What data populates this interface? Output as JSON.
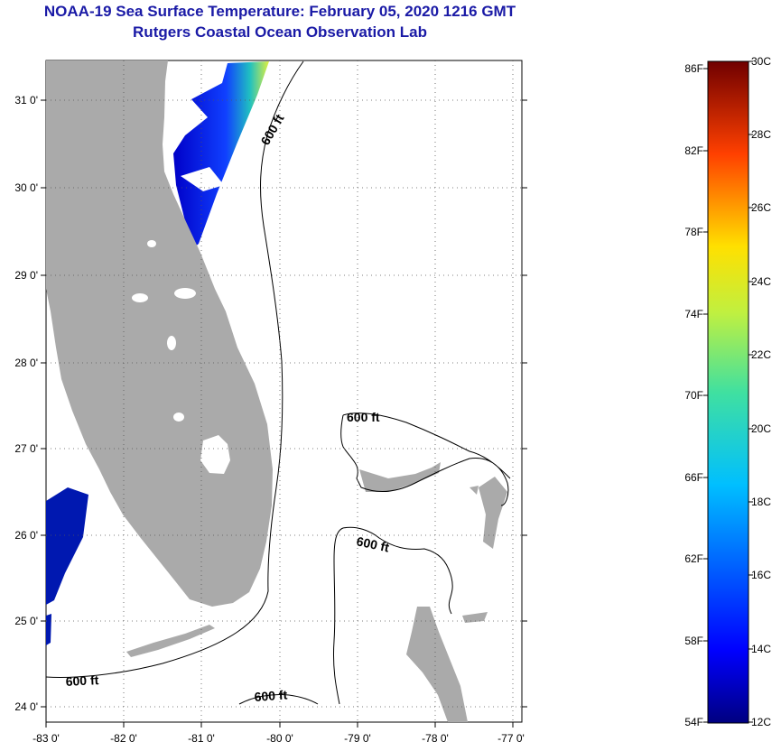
{
  "title": {
    "line1": "NOAA-19 Sea Surface Temperature:  February 05, 2020 1216 GMT",
    "line2": "Rutgers Coastal Ocean Observation Lab"
  },
  "axes": {
    "lon_labels": [
      "-83 0'",
      "-82 0'",
      "-81 0'",
      "-80 0'",
      "-79 0'",
      "-78 0'",
      "-77 0'"
    ],
    "lat_labels": [
      "31 0'",
      "30 0'",
      "29 0'",
      "28 0'",
      "27 0'",
      "26 0'",
      "25 0'",
      "24 0'"
    ]
  },
  "contours": {
    "label": "600 ft"
  },
  "colorbar": {
    "celsius": [
      "30C",
      "28C",
      "26C",
      "24C",
      "22C",
      "20C",
      "18C",
      "16C",
      "14C",
      "12C"
    ],
    "fahrenheit": [
      "86F",
      "82F",
      "78F",
      "74F",
      "70F",
      "66F",
      "62F",
      "58F",
      "54F"
    ]
  },
  "colors": {
    "title": "#1a1aa6",
    "land": "#aaaaaa",
    "gridline": "#555555"
  }
}
